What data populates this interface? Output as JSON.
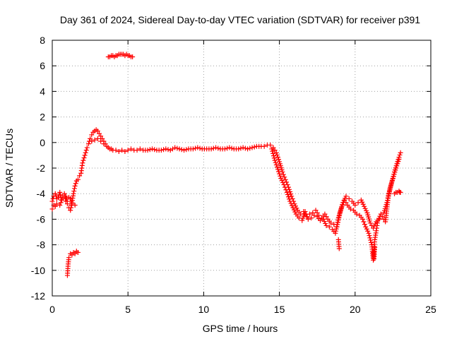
{
  "chart_data": {
    "type": "scatter",
    "title": "Day 361 of 2024, Sidereal Day-to-day VTEC variation (SDTVAR) for receiver p391",
    "xlabel": "GPS time / hours",
    "ylabel": "SDTVAR / TECUs",
    "xlim": [
      0,
      25
    ],
    "ylim": [
      -12,
      8
    ],
    "xticks": [
      0,
      5,
      10,
      15,
      20,
      25
    ],
    "yticks": [
      -12,
      -10,
      -8,
      -6,
      -4,
      -2,
      0,
      2,
      4,
      6,
      8
    ],
    "grid": true,
    "marker": "+",
    "color": "#ff0000",
    "series": [
      {
        "name": "SDTVAR",
        "x": [
          0.0,
          0.1,
          0.2,
          0.3,
          0.4,
          0.5,
          0.6,
          0.7,
          0.8,
          0.9,
          1.0,
          1.1,
          1.2,
          1.3,
          1.4,
          1.5,
          1.6,
          1.7,
          1.8,
          1.9,
          2.0,
          2.1,
          2.2,
          2.3,
          2.4,
          2.5,
          2.6,
          2.7,
          2.8,
          2.9,
          3.0,
          3.1,
          3.2,
          3.3,
          3.4,
          3.5,
          3.6,
          3.7,
          3.8,
          3.9,
          4.0,
          4.2,
          4.4,
          4.6,
          4.8,
          5.0,
          5.2,
          5.4,
          5.6,
          5.8,
          6.0,
          6.3,
          6.6,
          6.9,
          7.2,
          7.5,
          7.8,
          8.1,
          8.4,
          8.7,
          9.0,
          9.3,
          9.6,
          9.9,
          10.2,
          10.5,
          10.8,
          11.1,
          11.4,
          11.7,
          12.0,
          12.3,
          12.6,
          12.9,
          13.2,
          13.5,
          13.8,
          14.0,
          14.2,
          14.4,
          14.6,
          14.8,
          15.0,
          15.2,
          15.4,
          15.6,
          15.8,
          16.0,
          16.2,
          16.4,
          16.6,
          16.8,
          17.0,
          17.2,
          17.4,
          17.6,
          17.8,
          18.0,
          18.2,
          18.4,
          18.6,
          18.8,
          19.0,
          19.2,
          19.4,
          19.6,
          19.8,
          20.0,
          20.2,
          20.4,
          20.6,
          20.8,
          21.0,
          21.2,
          21.4,
          21.6,
          21.8,
          22.0,
          22.2,
          22.4,
          22.6,
          22.8,
          23.0,
          1.0,
          1.05,
          1.1,
          1.2,
          1.3,
          1.4,
          1.5,
          1.6,
          1.7,
          3.7,
          3.8,
          3.9,
          4.0,
          4.1,
          4.2,
          4.3,
          4.4,
          4.5,
          4.6,
          4.7,
          4.8,
          4.9,
          5.0,
          5.1,
          5.2,
          5.3,
          0.0,
          0.1,
          0.2,
          0.3,
          0.5,
          0.7,
          0.9,
          1.0,
          1.1,
          1.2,
          1.3,
          1.5,
          2.6,
          2.8,
          3.0,
          3.2,
          3.4,
          14.5,
          14.7,
          14.9,
          15.1,
          15.3,
          15.5,
          15.7,
          15.9,
          16.1,
          16.3,
          16.5,
          16.7,
          16.9,
          17.1,
          17.3,
          17.5,
          17.7,
          17.9,
          18.1,
          18.3,
          18.5,
          18.7,
          18.9,
          19.1,
          19.3,
          19.5,
          19.7,
          19.9,
          20.1,
          20.3,
          20.5,
          20.7,
          20.9,
          21.1,
          21.2,
          21.3,
          21.4,
          21.5,
          21.7,
          21.9,
          22.1,
          22.3,
          22.5,
          22.7,
          22.9,
          18.9,
          18.95,
          21.2,
          21.25,
          21.3,
          22.6,
          22.7,
          22.8,
          22.9,
          22.95,
          23.0
        ],
        "y": [
          -4.6,
          -4.2,
          -4.0,
          -4.4,
          -4.3,
          -3.9,
          -4.5,
          -4.2,
          -4.0,
          -4.6,
          -4.8,
          -5.1,
          -5.3,
          -4.7,
          -4.0,
          -3.4,
          -3.0,
          -2.9,
          -2.6,
          -2.4,
          -1.6,
          -1.2,
          -0.8,
          -0.4,
          -0.1,
          0.3,
          0.6,
          0.8,
          0.9,
          1.0,
          0.9,
          0.7,
          0.5,
          0.3,
          0.1,
          -0.1,
          -0.3,
          -0.4,
          -0.5,
          -0.5,
          -0.6,
          -0.6,
          -0.7,
          -0.6,
          -0.7,
          -0.6,
          -0.5,
          -0.6,
          -0.6,
          -0.5,
          -0.6,
          -0.6,
          -0.5,
          -0.6,
          -0.6,
          -0.5,
          -0.6,
          -0.4,
          -0.5,
          -0.6,
          -0.5,
          -0.5,
          -0.4,
          -0.5,
          -0.5,
          -0.5,
          -0.4,
          -0.5,
          -0.5,
          -0.4,
          -0.5,
          -0.5,
          -0.4,
          -0.5,
          -0.4,
          -0.3,
          -0.3,
          -0.3,
          -0.2,
          -0.2,
          -0.4,
          -0.8,
          -1.5,
          -2.3,
          -2.9,
          -3.5,
          -4.2,
          -4.8,
          -5.3,
          -5.6,
          -5.4,
          -5.8,
          -5.6,
          -5.5,
          -5.3,
          -5.7,
          -5.9,
          -5.6,
          -6.0,
          -6.3,
          -6.4,
          -6.6,
          -5.5,
          -4.7,
          -4.2,
          -4.4,
          -4.6,
          -4.9,
          -4.7,
          -4.5,
          -5.0,
          -5.5,
          -6.3,
          -6.7,
          -6.2,
          -6.0,
          -5.8,
          -6.2,
          -4.2,
          -3.2,
          -2.3,
          -1.5,
          -0.8,
          -10.4,
          -9.5,
          -9.0,
          -8.7,
          -8.8,
          -8.6,
          -8.7,
          -8.5,
          -8.6,
          6.7,
          6.7,
          6.8,
          6.8,
          6.7,
          6.8,
          6.8,
          6.9,
          6.9,
          6.9,
          6.9,
          6.8,
          6.9,
          6.8,
          6.8,
          6.7,
          6.7,
          -5.2,
          -4.9,
          -5.0,
          -4.8,
          -4.9,
          -4.3,
          -4.2,
          -4.6,
          -4.3,
          -4.4,
          -4.8,
          -4.9,
          0.1,
          0.2,
          0.3,
          0.1,
          -0.1,
          -0.5,
          -1.4,
          -2.1,
          -2.8,
          -3.3,
          -3.9,
          -4.6,
          -5.1,
          -5.6,
          -5.9,
          -6.1,
          -5.4,
          -6.0,
          -5.9,
          -5.7,
          -5.8,
          -6.1,
          -6.0,
          -6.5,
          -6.6,
          -6.8,
          -7.1,
          -5.9,
          -5.1,
          -4.5,
          -4.9,
          -5.2,
          -5.3,
          -5.6,
          -5.7,
          -6.0,
          -6.6,
          -7.1,
          -8.0,
          -9.2,
          -7.6,
          -6.9,
          -6.1,
          -5.6,
          -5.5,
          -4.7,
          -3.6,
          -2.8,
          -2.0,
          -1.3,
          -7.6,
          -8.3,
          -8.6,
          -9.1,
          -8.2,
          -4.0,
          -3.9,
          -3.9,
          -3.8,
          -3.9,
          -3.9
        ]
      }
    ]
  }
}
